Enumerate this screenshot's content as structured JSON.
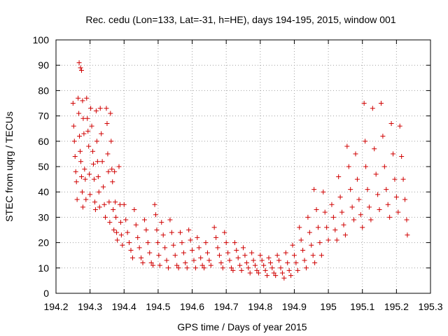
{
  "chart_data": {
    "type": "scatter",
    "title": "Rec. cedu (Lon=133, Lat=-31, h=HE), days 194-195, 2015, window 001",
    "xlabel": "GPS time / Days of year 2015",
    "ylabel": "STEC from uqrg / TECUs",
    "xlim": [
      194.2,
      195.3
    ],
    "ylim": [
      0,
      100
    ],
    "x_ticks": [
      194.2,
      194.3,
      194.4,
      194.5,
      194.6,
      194.7,
      194.8,
      194.9,
      195.0,
      195.1,
      195.2,
      195.3
    ],
    "x_tick_labels": [
      "194.2",
      "194.3",
      "194.4",
      "194.5",
      "194.6",
      "194.7",
      "194.8",
      "194.9",
      "195",
      "195.1",
      "195.2",
      "195.3"
    ],
    "y_ticks": [
      0,
      10,
      20,
      30,
      40,
      50,
      60,
      70,
      80,
      90,
      100
    ],
    "y_tick_labels": [
      "0",
      "10",
      "20",
      "30",
      "40",
      "50",
      "60",
      "70",
      "80",
      "90",
      "100"
    ],
    "grid": true,
    "marker": "+",
    "marker_color": "#d00000",
    "series": [
      {
        "points": [
          [
            194.25,
            75
          ],
          [
            194.252,
            66
          ],
          [
            194.254,
            60
          ],
          [
            194.256,
            54
          ],
          [
            194.258,
            48
          ],
          [
            194.26,
            44
          ],
          [
            194.262,
            37
          ],
          [
            194.265,
            77
          ],
          [
            194.267,
            71
          ],
          [
            194.269,
            62
          ],
          [
            194.271,
            56
          ],
          [
            194.273,
            52
          ],
          [
            194.275,
            46
          ],
          [
            194.277,
            40
          ],
          [
            194.279,
            34
          ],
          [
            194.268,
            91
          ],
          [
            194.272,
            89
          ],
          [
            194.275,
            88
          ],
          [
            194.278,
            76
          ],
          [
            194.28,
            69
          ],
          [
            194.282,
            63
          ],
          [
            194.284,
            49
          ],
          [
            194.286,
            45
          ],
          [
            194.288,
            37
          ],
          [
            194.29,
            77
          ],
          [
            194.292,
            69
          ],
          [
            194.294,
            64
          ],
          [
            194.296,
            58
          ],
          [
            194.298,
            47
          ],
          [
            194.3,
            39
          ],
          [
            194.302,
            73
          ],
          [
            194.305,
            66
          ],
          [
            194.308,
            56
          ],
          [
            194.31,
            51
          ],
          [
            194.312,
            45
          ],
          [
            194.314,
            36
          ],
          [
            194.316,
            33
          ],
          [
            194.318,
            72
          ],
          [
            194.32,
            60
          ],
          [
            194.322,
            52
          ],
          [
            194.324,
            46
          ],
          [
            194.326,
            40
          ],
          [
            194.328,
            34
          ],
          [
            194.33,
            73
          ],
          [
            194.333,
            63
          ],
          [
            194.336,
            52
          ],
          [
            194.339,
            42
          ],
          [
            194.342,
            35
          ],
          [
            194.345,
            30
          ],
          [
            194.348,
            73
          ],
          [
            194.35,
            67
          ],
          [
            194.352,
            55
          ],
          [
            194.354,
            48
          ],
          [
            194.356,
            36
          ],
          [
            194.358,
            28
          ],
          [
            194.36,
            71
          ],
          [
            194.362,
            60
          ],
          [
            194.364,
            49
          ],
          [
            194.366,
            44
          ],
          [
            194.368,
            33
          ],
          [
            194.37,
            25
          ],
          [
            194.372,
            48
          ],
          [
            194.374,
            36
          ],
          [
            194.376,
            30
          ],
          [
            194.378,
            24
          ],
          [
            194.38,
            21
          ],
          [
            194.385,
            50
          ],
          [
            194.388,
            35
          ],
          [
            194.39,
            28
          ],
          [
            194.392,
            23
          ],
          [
            194.395,
            19
          ],
          [
            194.4,
            35
          ],
          [
            194.405,
            29
          ],
          [
            194.41,
            24
          ],
          [
            194.415,
            20
          ],
          [
            194.42,
            17
          ],
          [
            194.425,
            14
          ],
          [
            194.43,
            33
          ],
          [
            194.435,
            27
          ],
          [
            194.44,
            22
          ],
          [
            194.445,
            18
          ],
          [
            194.45,
            14
          ],
          [
            194.455,
            12
          ],
          [
            194.46,
            29
          ],
          [
            194.465,
            25
          ],
          [
            194.47,
            20
          ],
          [
            194.475,
            16
          ],
          [
            194.48,
            12
          ],
          [
            194.485,
            11
          ],
          [
            194.49,
            35
          ],
          [
            194.493,
            31
          ],
          [
            194.496,
            25
          ],
          [
            194.499,
            20
          ],
          [
            194.502,
            15
          ],
          [
            194.505,
            11
          ],
          [
            194.51,
            28
          ],
          [
            194.515,
            23
          ],
          [
            194.52,
            18
          ],
          [
            194.525,
            13
          ],
          [
            194.53,
            10
          ],
          [
            194.535,
            29
          ],
          [
            194.54,
            24
          ],
          [
            194.545,
            19
          ],
          [
            194.55,
            15
          ],
          [
            194.555,
            11
          ],
          [
            194.56,
            10
          ],
          [
            194.565,
            24
          ],
          [
            194.57,
            20
          ],
          [
            194.575,
            16
          ],
          [
            194.58,
            12
          ],
          [
            194.585,
            10
          ],
          [
            194.59,
            25
          ],
          [
            194.595,
            21
          ],
          [
            194.6,
            17
          ],
          [
            194.605,
            13
          ],
          [
            194.61,
            10
          ],
          [
            194.615,
            22
          ],
          [
            194.62,
            18
          ],
          [
            194.625,
            14
          ],
          [
            194.63,
            11
          ],
          [
            194.635,
            10
          ],
          [
            194.64,
            20
          ],
          [
            194.645,
            16
          ],
          [
            194.65,
            13
          ],
          [
            194.655,
            11
          ],
          [
            194.665,
            26
          ],
          [
            194.67,
            22
          ],
          [
            194.675,
            18
          ],
          [
            194.68,
            15
          ],
          [
            194.685,
            12
          ],
          [
            194.69,
            10
          ],
          [
            194.695,
            24
          ],
          [
            194.7,
            20
          ],
          [
            194.705,
            16
          ],
          [
            194.71,
            13
          ],
          [
            194.715,
            10
          ],
          [
            194.72,
            9
          ],
          [
            194.725,
            20
          ],
          [
            194.73,
            17
          ],
          [
            194.735,
            14
          ],
          [
            194.74,
            11
          ],
          [
            194.745,
            9
          ],
          [
            194.75,
            18
          ],
          [
            194.755,
            15
          ],
          [
            194.76,
            12
          ],
          [
            194.765,
            10
          ],
          [
            194.77,
            8
          ],
          [
            194.775,
            16
          ],
          [
            194.78,
            13
          ],
          [
            194.785,
            11
          ],
          [
            194.79,
            9
          ],
          [
            194.795,
            8
          ],
          [
            194.8,
            15
          ],
          [
            194.805,
            13
          ],
          [
            194.81,
            11
          ],
          [
            194.815,
            9
          ],
          [
            194.82,
            7
          ],
          [
            194.825,
            14
          ],
          [
            194.83,
            12
          ],
          [
            194.835,
            10
          ],
          [
            194.84,
            8
          ],
          [
            194.845,
            7
          ],
          [
            194.85,
            15
          ],
          [
            194.855,
            13
          ],
          [
            194.86,
            10
          ],
          [
            194.865,
            8
          ],
          [
            194.87,
            6
          ],
          [
            194.875,
            16
          ],
          [
            194.88,
            12
          ],
          [
            194.885,
            9
          ],
          [
            194.89,
            7
          ],
          [
            194.895,
            19
          ],
          [
            194.9,
            15
          ],
          [
            194.905,
            12
          ],
          [
            194.91,
            9
          ],
          [
            194.915,
            26
          ],
          [
            194.92,
            21
          ],
          [
            194.925,
            17
          ],
          [
            194.93,
            13
          ],
          [
            194.935,
            10
          ],
          [
            194.94,
            30
          ],
          [
            194.945,
            24
          ],
          [
            194.95,
            19
          ],
          [
            194.955,
            15
          ],
          [
            194.96,
            12
          ],
          [
            194.958,
            41
          ],
          [
            194.965,
            33
          ],
          [
            194.97,
            26
          ],
          [
            194.975,
            20
          ],
          [
            194.98,
            15
          ],
          [
            194.985,
            40
          ],
          [
            194.99,
            32
          ],
          [
            194.995,
            26
          ],
          [
            195.0,
            21
          ],
          [
            195.01,
            35
          ],
          [
            195.015,
            30
          ],
          [
            195.02,
            25
          ],
          [
            195.025,
            21
          ],
          [
            195.03,
            46
          ],
          [
            195.035,
            38
          ],
          [
            195.04,
            32
          ],
          [
            195.045,
            27
          ],
          [
            195.05,
            23
          ],
          [
            195.055,
            58
          ],
          [
            195.06,
            50
          ],
          [
            195.065,
            41
          ],
          [
            195.07,
            34
          ],
          [
            195.075,
            29
          ],
          [
            195.08,
            55
          ],
          [
            195.085,
            45
          ],
          [
            195.09,
            37
          ],
          [
            195.095,
            31
          ],
          [
            195.1,
            26
          ],
          [
            195.105,
            75
          ],
          [
            195.108,
            60
          ],
          [
            195.11,
            50
          ],
          [
            195.115,
            41
          ],
          [
            195.12,
            34
          ],
          [
            195.125,
            29
          ],
          [
            195.13,
            73
          ],
          [
            195.135,
            57
          ],
          [
            195.14,
            47
          ],
          [
            195.145,
            39
          ],
          [
            195.15,
            33
          ],
          [
            195.155,
            75
          ],
          [
            195.16,
            62
          ],
          [
            195.165,
            50
          ],
          [
            195.17,
            41
          ],
          [
            195.175,
            35
          ],
          [
            195.18,
            30
          ],
          [
            195.185,
            67
          ],
          [
            195.19,
            55
          ],
          [
            195.195,
            45
          ],
          [
            195.2,
            38
          ],
          [
            195.205,
            32
          ],
          [
            195.21,
            66
          ],
          [
            195.215,
            54
          ],
          [
            195.22,
            45
          ],
          [
            195.225,
            37
          ],
          [
            195.23,
            29
          ],
          [
            195.232,
            23
          ]
        ]
      }
    ]
  }
}
